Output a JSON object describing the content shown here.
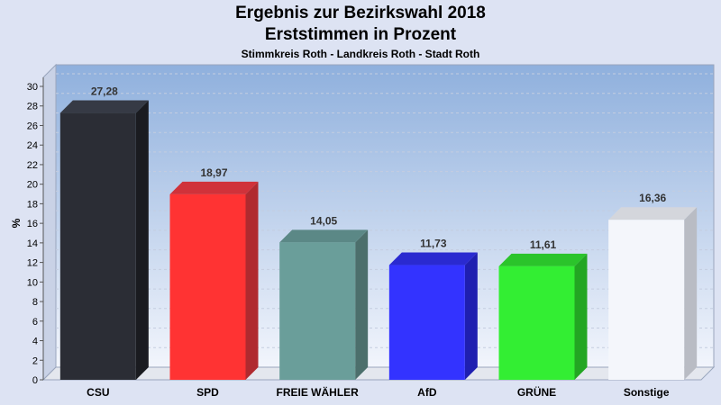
{
  "chart_data": {
    "type": "bar",
    "title": "Ergebnis zur Bezirkswahl 2018",
    "subtitle": "Erststimmen in Prozent",
    "subsubtitle": "Stimmkreis Roth - Landkreis Roth - Stadt Roth",
    "ylabel": "%",
    "xlabel": "",
    "ylim": [
      0,
      30
    ],
    "yticks": [
      0,
      2,
      4,
      6,
      8,
      10,
      12,
      14,
      16,
      18,
      20,
      22,
      24,
      26,
      28,
      30
    ],
    "grid": true,
    "categories": [
      "CSU",
      "SPD",
      "FREIE WÄHLER",
      "AfD",
      "GRÜNE",
      "Sonstige"
    ],
    "values": [
      27.28,
      18.97,
      14.05,
      11.73,
      11.61,
      16.36
    ],
    "value_labels": [
      "27,28",
      "18,97",
      "14,05",
      "11,73",
      "11,61",
      "16,36"
    ],
    "colors": [
      "#2b2d35",
      "#ff3333",
      "#6a9e9a",
      "#3333ff",
      "#33ee33",
      "#f4f6fb"
    ],
    "side_colors": [
      "#1a1b20",
      "#b02a2f",
      "#4c6f6c",
      "#1f1fb0",
      "#23a623",
      "#b9bcc4"
    ],
    "top_colors": [
      "#363a45",
      "#d0323a",
      "#5b8886",
      "#2a2ad0",
      "#2bc42b",
      "#d4d6dc"
    ]
  }
}
